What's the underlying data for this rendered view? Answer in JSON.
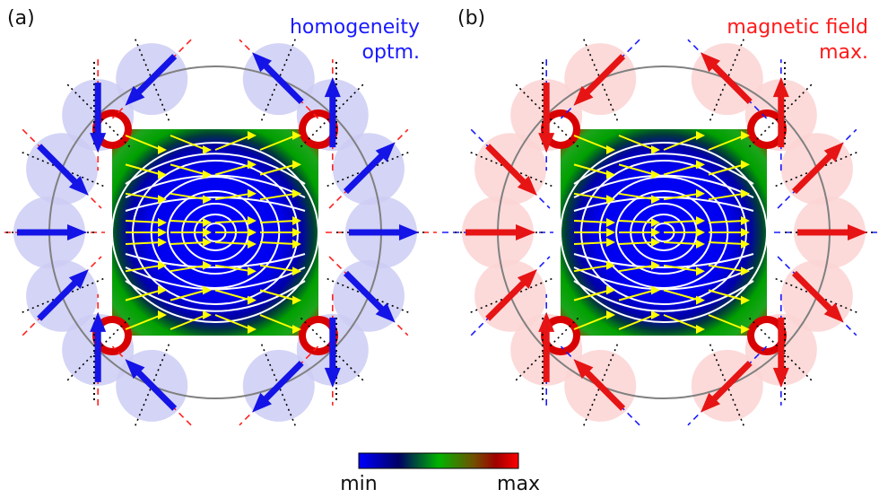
{
  "panels": [
    {
      "id": "a",
      "label": "(a)",
      "title_line1": "homogeneity",
      "title_line2": "optm.",
      "title_color": "#1a1aff",
      "circle_fill": "#ccccf5",
      "arrow_color": "#1414e6",
      "dashed_color": "#ff2020"
    },
    {
      "id": "b",
      "label": "(b)",
      "title_line1": "magnetic field",
      "title_line2": "max.",
      "title_color": "#ff1a1a",
      "circle_fill": "#fbd3d3",
      "arrow_color": "#e61414",
      "dashed_color": "#1a1aff"
    }
  ],
  "colorbar": {
    "min_label": "min",
    "max_label": "max",
    "stops": [
      "#0000ff",
      "#00005a",
      "#00b400",
      "#7a5a00",
      "#a00000",
      "#ff0000"
    ]
  },
  "field_arrow_color": "#ffff00",
  "contour_color": "#ffffff",
  "ring_color": "#808080"
}
